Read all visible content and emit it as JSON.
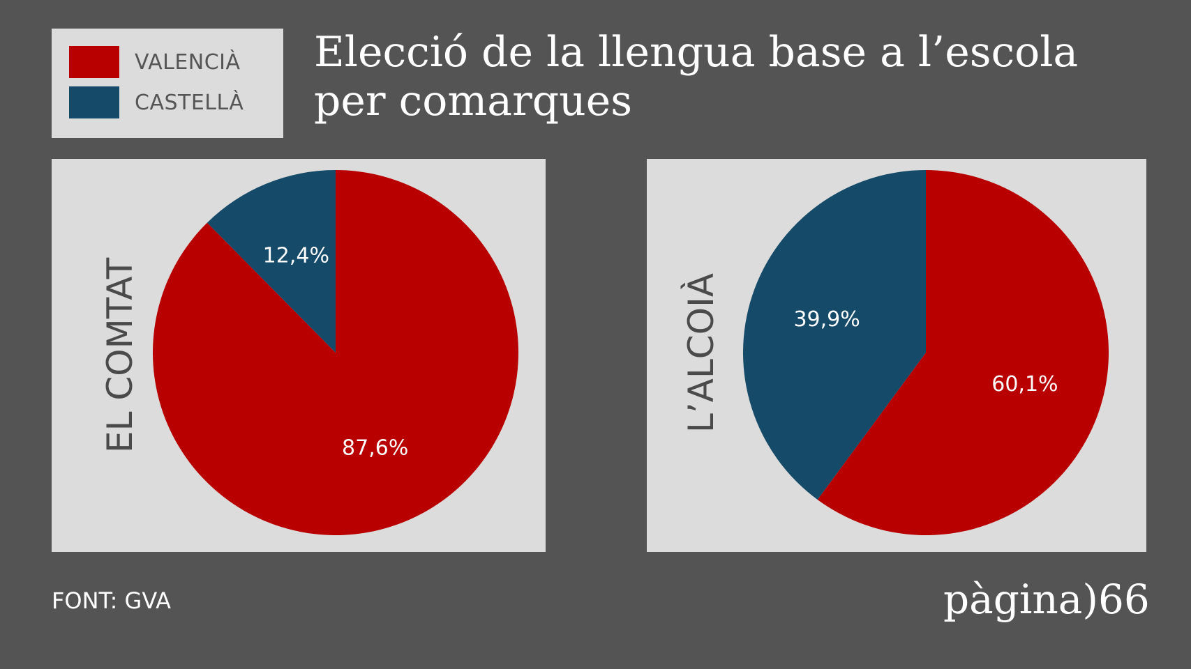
{
  "legend": {
    "items": [
      {
        "label": "VALENCIÀ",
        "color": "#b80000"
      },
      {
        "label": "CASTELLÀ",
        "color": "#154a68"
      }
    ]
  },
  "title": {
    "line1": "Elecció de la llengua base a l’escola",
    "line2": "per comarques"
  },
  "chart_data": [
    {
      "type": "pie",
      "title": "EL COMTAT",
      "slices": [
        {
          "name": "VALENCIÀ",
          "value": 87.6,
          "label": "87,6%",
          "color": "#b80000"
        },
        {
          "name": "CASTELLÀ",
          "value": 12.4,
          "label": "12,4%",
          "color": "#154a68"
        }
      ]
    },
    {
      "type": "pie",
      "title": "L’ALCOIÀ",
      "slices": [
        {
          "name": "VALENCIÀ",
          "value": 60.1,
          "label": "60,1%",
          "color": "#b80000"
        },
        {
          "name": "CASTELLÀ",
          "value": 39.9,
          "label": "39,9%",
          "color": "#154a68"
        }
      ]
    }
  ],
  "source": "FONT: GVA",
  "logo": "pàgina)66"
}
